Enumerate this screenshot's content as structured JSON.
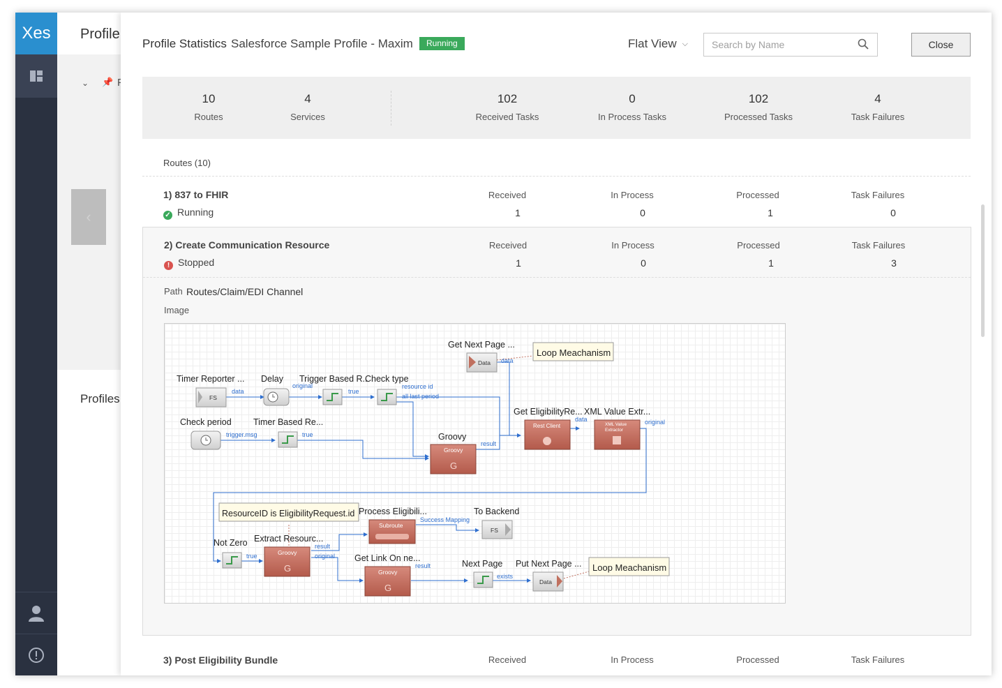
{
  "nav": {
    "logo": "Xes"
  },
  "background": {
    "title": "Profile",
    "item_prefix": "F",
    "section": "Profiles"
  },
  "header": {
    "title": "Profile Statistics",
    "profile_name": "Salesforce Sample Profile - Maxim",
    "status_badge": "Running",
    "view_select": "Flat View",
    "search_placeholder": "Search by Name",
    "close_label": "Close"
  },
  "stats": [
    {
      "value": "10",
      "label": "Routes"
    },
    {
      "value": "4",
      "label": "Services"
    },
    {
      "value": "102",
      "label": "Received Tasks"
    },
    {
      "value": "0",
      "label": "In Process Tasks"
    },
    {
      "value": "102",
      "label": "Processed Tasks"
    },
    {
      "value": "4",
      "label": "Task Failures"
    }
  ],
  "routes_heading": "Routes (10)",
  "columns": {
    "received": "Received",
    "in_process": "In Process",
    "processed": "Processed",
    "task_failures": "Task Failures"
  },
  "routes": [
    {
      "name": "1) 837 to FHIR",
      "status": "Running",
      "status_color": "#3aa95b",
      "received": "1",
      "in_process": "0",
      "processed": "1",
      "task_failures": "0"
    },
    {
      "name": "2) Create Communication Resource",
      "status": "Stopped",
      "status_color": "#d9534f",
      "received": "1",
      "in_process": "0",
      "processed": "1",
      "task_failures": "3"
    },
    {
      "name": "3) Post Eligibility Bundle"
    }
  ],
  "detail": {
    "path_label": "Path",
    "path_value": "Routes/Claim/EDI Channel",
    "image_label": "Image"
  },
  "diagram": {
    "nodes": [
      {
        "id": "get-next-page",
        "label": "Get Next Page ...",
        "kind": "data",
        "inner": "Data"
      },
      {
        "id": "timer-reporter",
        "label": "Timer Reporter ...",
        "kind": "fs",
        "inner": "FS"
      },
      {
        "id": "delay",
        "label": "Delay",
        "kind": "clock"
      },
      {
        "id": "trigger-based",
        "label": "Trigger Based R..",
        "kind": "switch"
      },
      {
        "id": "check-type",
        "label": "Check type",
        "kind": "switch"
      },
      {
        "id": "check-period",
        "label": "Check period",
        "kind": "clock"
      },
      {
        "id": "timer-based",
        "label": "Timer Based Re...",
        "kind": "switch"
      },
      {
        "id": "groovy-1",
        "label": "Groovy",
        "kind": "groovy",
        "inner": "Groovy"
      },
      {
        "id": "get-eligibility",
        "label": "Get EligibilityRe...",
        "kind": "rest",
        "inner": "Rest Client"
      },
      {
        "id": "xml-value",
        "label": "XML Value Extr...",
        "kind": "xml",
        "inner": "XML Value Extractor"
      },
      {
        "id": "process-eligibility",
        "label": "Process Eligibili...",
        "kind": "subroute",
        "inner": "Subroute"
      },
      {
        "id": "to-backend",
        "label": "To Backend",
        "kind": "fs",
        "inner": "FS"
      },
      {
        "id": "not-zero",
        "label": "Not Zero",
        "kind": "switch"
      },
      {
        "id": "extract-resource",
        "label": "Extract Resourc...",
        "kind": "groovy",
        "inner": "Groovy"
      },
      {
        "id": "get-link",
        "label": "Get Link On ne...",
        "kind": "groovy",
        "inner": "Groovy"
      },
      {
        "id": "next-page",
        "label": "Next Page",
        "kind": "switch"
      },
      {
        "id": "put-next-page",
        "label": "Put Next Page ...",
        "kind": "data",
        "inner": "Data"
      }
    ],
    "edge_labels": [
      "data",
      "original",
      "true",
      "resource id",
      "all last period",
      "trigger.msg",
      "true",
      "result",
      "data",
      "original",
      "Success Mapping",
      "true",
      "result",
      "original",
      "result",
      "exists",
      "data"
    ],
    "notes": [
      "Loop Meachanism",
      "ResourceID is EligibilityRequest.id",
      "Loop Meachanism"
    ]
  }
}
